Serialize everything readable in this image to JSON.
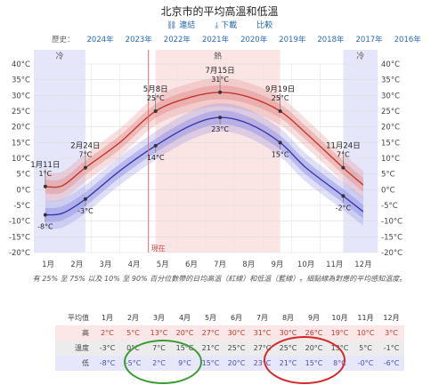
{
  "header": {
    "title": "北京市的平均高溫和低溫",
    "links": [
      "連結",
      "下載",
      "比較"
    ]
  },
  "history": {
    "label": "歷史：",
    "years": [
      "2024年",
      "2023年",
      "2022年",
      "2021年",
      "2020年",
      "2019年",
      "2018年",
      "2017年",
      "2016年"
    ]
  },
  "chart_data": {
    "type": "area",
    "title": "北京市的平均高溫和低溫",
    "categories": [
      "1月",
      "2月",
      "3月",
      "4月",
      "5月",
      "6月",
      "7月",
      "8月",
      "9月",
      "10月",
      "11月",
      "12月"
    ],
    "y_ticks": [
      "40°C",
      "35°C",
      "30°C",
      "25°C",
      "20°C",
      "15°C",
      "10°C",
      "5°C",
      "0°C",
      "-5°C",
      "-10°C",
      "-15°C",
      "-20°C"
    ],
    "ylim": [
      -20,
      40
    ],
    "series": [
      {
        "name": "高",
        "color": "#c0392b",
        "points": [
          [
            0.4,
            1
          ],
          [
            1.0,
            1.3
          ],
          [
            1.8,
            7
          ],
          [
            3.0,
            15
          ],
          [
            4.25,
            25
          ],
          [
            5.5,
            29.5
          ],
          [
            6.5,
            31
          ],
          [
            7.5,
            29.5
          ],
          [
            8.6,
            25
          ],
          [
            9.5,
            18
          ],
          [
            10.8,
            7
          ],
          [
            11.5,
            1.5
          ]
        ]
      },
      {
        "name": "低",
        "color": "#3a3ab0",
        "points": [
          [
            0.4,
            -8
          ],
          [
            1.0,
            -7.5
          ],
          [
            1.8,
            -3
          ],
          [
            3.0,
            6
          ],
          [
            4.25,
            14
          ],
          [
            5.5,
            20.5
          ],
          [
            6.5,
            23
          ],
          [
            7.5,
            21
          ],
          [
            8.6,
            15
          ],
          [
            9.5,
            7
          ],
          [
            10.8,
            -2
          ],
          [
            11.5,
            -7
          ]
        ]
      }
    ],
    "annotations": [
      {
        "label": "1月11日",
        "value": "1°C",
        "x": 0.4,
        "y": 1
      },
      {
        "label": "",
        "value": "-8°C",
        "x": 0.4,
        "y": -8
      },
      {
        "label": "2月24日",
        "value": "7°C",
        "x": 1.8,
        "y": 7
      },
      {
        "label": "",
        "value": "-3°C",
        "x": 1.8,
        "y": -3
      },
      {
        "label": "5月8日",
        "value": "25°C",
        "x": 4.25,
        "y": 25
      },
      {
        "label": "",
        "value": "14°C",
        "x": 4.25,
        "y": 14
      },
      {
        "label": "7月15日",
        "value": "31°C",
        "x": 6.5,
        "y": 31
      },
      {
        "label": "",
        "value": "23°C",
        "x": 6.5,
        "y": 23
      },
      {
        "label": "9月19日",
        "value": "25°C",
        "x": 8.6,
        "y": 25
      },
      {
        "label": "",
        "value": "15°C",
        "x": 8.6,
        "y": 15
      },
      {
        "label": "11月24日",
        "value": "7°C",
        "x": 10.8,
        "y": 7
      },
      {
        "label": "",
        "value": "-2°C",
        "x": 10.8,
        "y": -2
      }
    ],
    "seasons": [
      {
        "label": "冷",
        "start": 0,
        "end": 1.8,
        "color": "#e6e6fb"
      },
      {
        "label": "熱",
        "start": 4.25,
        "end": 8.6,
        "color": "#fbe4e4"
      },
      {
        "label": "冷",
        "start": 10.8,
        "end": 12,
        "color": "#e6e6fb"
      }
    ],
    "now": {
      "label": "現在",
      "x": 4.0
    }
  },
  "caption": "有 25% 至 75% 以及 10% 至 90% 百分位數帶的日均高溫（紅線）和低溫（藍線）。細點線為對應的平均感知溫度。",
  "table": {
    "corner": "平均值",
    "months": [
      "1月",
      "2月",
      "3月",
      "4月",
      "5月",
      "6月",
      "7月",
      "8月",
      "9月",
      "10月",
      "11月",
      "12月"
    ],
    "rows": [
      {
        "label": "高",
        "values": [
          "2°C",
          "5°C",
          "13°C",
          "20°C",
          "27°C",
          "30°C",
          "31°C",
          "30°C",
          "26°C",
          "19°C",
          "10°C",
          "3°C"
        ]
      },
      {
        "label": "溫度",
        "values": [
          "-3°C",
          "0°C",
          "7°C",
          "15°C",
          "21°C",
          "25°C",
          "27°C",
          "25°C",
          "20°C",
          "13°C",
          "5°C",
          "-1°C"
        ]
      },
      {
        "label": "低",
        "values": [
          "-8°C",
          "-5°C",
          "2°C",
          "9°C",
          "15°C",
          "20°C",
          "23°C",
          "21°C",
          "15°C",
          "8°C",
          "-0°C",
          "-6°C"
        ]
      }
    ]
  }
}
